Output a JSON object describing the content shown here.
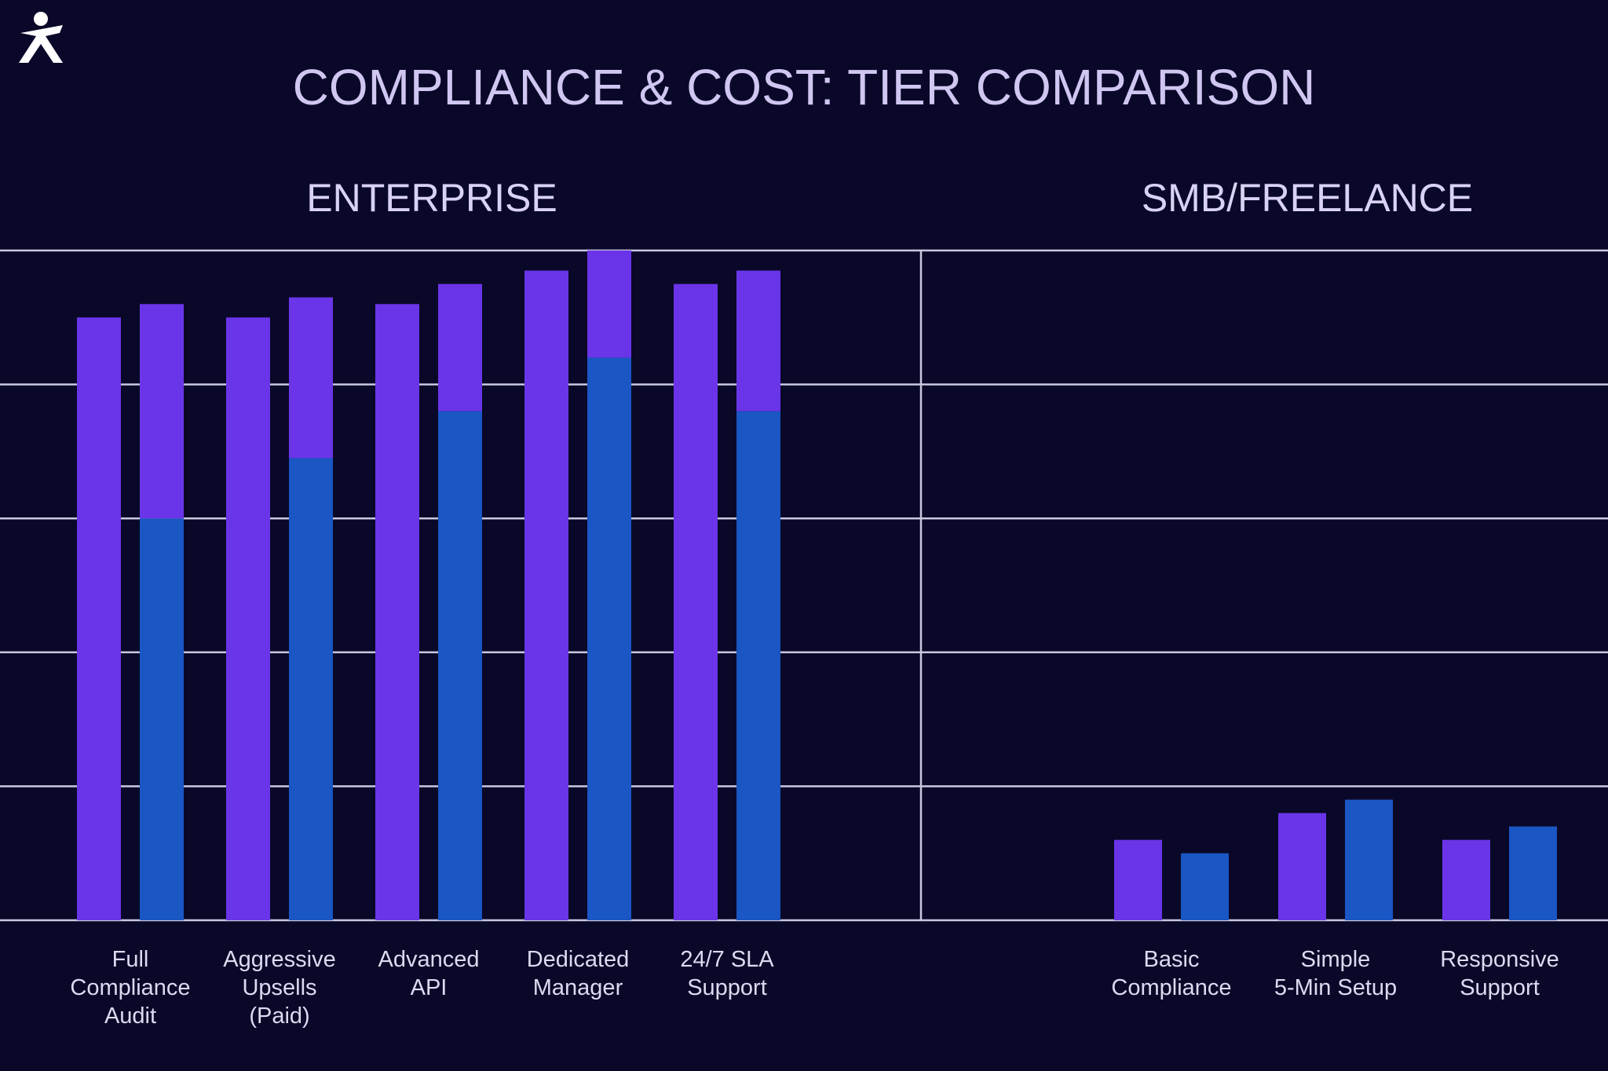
{
  "title": "COMPLIANCE & COST: TIER COMPARISON",
  "chart_data": [
    {
      "type": "bar",
      "title": "ENTERPRISE",
      "categories": [
        "Full\nCompliance\nAudit",
        "Aggressive\nUpsells\n(Paid)",
        "Advanced\nAPI",
        "Dedicated\nManager",
        "24/7 SLA\nSupport"
      ],
      "series": [
        {
          "color": "#6a35e8",
          "values": [
            4.5,
            4.5,
            4.6,
            4.85,
            4.75
          ]
        },
        {
          "color": "#1a56c4",
          "values": [
            3.0,
            3.45,
            3.8,
            4.2,
            3.8
          ]
        },
        {
          "color": "#6a35e8",
          "values": [
            1.6,
            1.2,
            0.95,
            0.8,
            1.05
          ],
          "stack_on": 1
        }
      ],
      "ylim": [
        0,
        5
      ],
      "yticks": [
        0,
        1,
        2,
        3,
        4,
        5
      ],
      "grid": true
    },
    {
      "type": "bar",
      "title": "SMB/FREELANCE",
      "categories": [
        "Basic\nCompliance",
        "Simple\n5-Min Setup",
        "Responsive\nSupport"
      ],
      "series": [
        {
          "color": "#6a35e8",
          "values": [
            0.6,
            0.8,
            0.6
          ]
        },
        {
          "color": "#1a56c4",
          "values": [
            0.5,
            0.9,
            0.7
          ]
        }
      ],
      "ylim": [
        0,
        5
      ],
      "yticks": [
        0,
        1,
        2,
        3,
        4,
        5
      ],
      "grid": true
    }
  ]
}
